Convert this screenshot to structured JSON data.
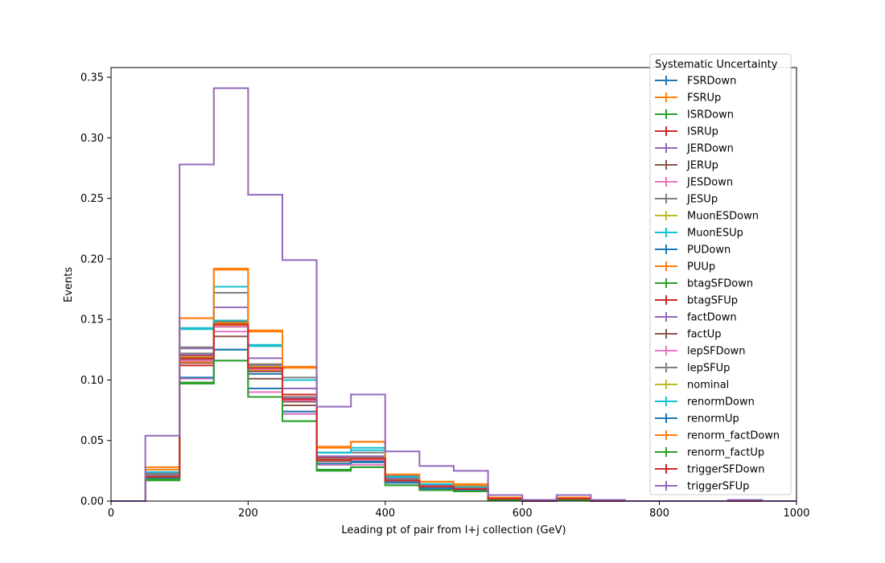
{
  "chart_data": {
    "type": "step-histogram",
    "title": "",
    "xlabel": "Leading pt of pair from l+j collection (GeV)",
    "ylabel": "Events",
    "xlim": [
      0,
      1000
    ],
    "ylim": [
      0,
      0.358
    ],
    "xticks": [
      0,
      200,
      400,
      600,
      800,
      1000
    ],
    "xtick_labels": [
      "0",
      "200",
      "400",
      "600",
      "800",
      "1000"
    ],
    "yticks": [
      0,
      0.05,
      0.1,
      0.15,
      0.2,
      0.25,
      0.3,
      0.35
    ],
    "ytick_labels": [
      "0.00",
      "0.05",
      "0.10",
      "0.15",
      "0.20",
      "0.25",
      "0.30",
      "0.35"
    ],
    "grid": false,
    "legend": {
      "title": "Systematic Uncertainty",
      "placement": "top-right"
    },
    "bin_edges": [
      0,
      50,
      100,
      150,
      200,
      250,
      300,
      350,
      400,
      450,
      500,
      550,
      600,
      650,
      700,
      750,
      800,
      850,
      900,
      950,
      1000
    ],
    "series": [
      {
        "name": "FSRDown",
        "color": "#1f77b4",
        "values": [
          0,
          0.02,
          0.121,
          0.125,
          0.093,
          0.072,
          0.03,
          0.033,
          0.016,
          0.011,
          0.01,
          0.002,
          0,
          0.002,
          0,
          0,
          0,
          0,
          0,
          0
        ]
      },
      {
        "name": "FSRUp",
        "color": "#ff7f0e",
        "values": [
          0,
          0.028,
          0.151,
          0.192,
          0.141,
          0.111,
          0.045,
          0.049,
          0.022,
          0.016,
          0.014,
          0.003,
          0,
          0.003,
          0,
          0,
          0,
          0,
          0,
          0
        ]
      },
      {
        "name": "ISRDown",
        "color": "#2ca02c",
        "values": [
          0,
          0.017,
          0.097,
          0.116,
          0.086,
          0.066,
          0.025,
          0.028,
          0.013,
          0.009,
          0.008,
          0.001,
          0,
          0.001,
          0,
          0,
          0,
          0,
          0,
          0
        ]
      },
      {
        "name": "ISRUp",
        "color": "#d62728",
        "values": [
          0,
          0.021,
          0.112,
          0.149,
          0.108,
          0.088,
          0.036,
          0.036,
          0.018,
          0.012,
          0.011,
          0.002,
          0,
          0.002,
          0,
          0,
          0,
          0,
          0,
          0
        ]
      },
      {
        "name": "JERDown",
        "color": "#9467bd",
        "values": [
          0,
          0.022,
          0.126,
          0.16,
          0.118,
          0.093,
          0.037,
          0.037,
          0.019,
          0.013,
          0.011,
          0.002,
          0,
          0.002,
          0,
          0,
          0,
          0,
          0,
          0
        ]
      },
      {
        "name": "JERUp",
        "color": "#8c564b",
        "values": [
          0,
          0.02,
          0.114,
          0.136,
          0.101,
          0.079,
          0.033,
          0.034,
          0.017,
          0.012,
          0.01,
          0.002,
          0,
          0.002,
          0,
          0,
          0,
          0,
          0,
          0
        ]
      },
      {
        "name": "JESDown",
        "color": "#e377c2",
        "values": [
          0,
          0.019,
          0.101,
          0.14,
          0.09,
          0.072,
          0.03,
          0.03,
          0.015,
          0.01,
          0.009,
          0.001,
          0,
          0.001,
          0,
          0,
          0,
          0,
          0,
          0
        ]
      },
      {
        "name": "JESUp",
        "color": "#7f7f7f",
        "values": [
          0,
          0.023,
          0.127,
          0.172,
          0.128,
          0.102,
          0.04,
          0.04,
          0.021,
          0.014,
          0.012,
          0.002,
          0,
          0.002,
          0,
          0,
          0,
          0,
          0,
          0
        ]
      },
      {
        "name": "MuonESDown",
        "color": "#bcbd22",
        "values": [
          0,
          0.02,
          0.118,
          0.145,
          0.11,
          0.083,
          0.033,
          0.035,
          0.017,
          0.012,
          0.01,
          0.002,
          0,
          0.002,
          0,
          0,
          0,
          0,
          0,
          0
        ]
      },
      {
        "name": "MuonESUp",
        "color": "#17becf",
        "values": [
          0,
          0.026,
          0.143,
          0.177,
          0.129,
          0.1,
          0.04,
          0.044,
          0.02,
          0.014,
          0.012,
          0.002,
          0,
          0.002,
          0,
          0,
          0,
          0,
          0,
          0
        ]
      },
      {
        "name": "PUDown",
        "color": "#1f77b4",
        "values": [
          0,
          0.021,
          0.118,
          0.145,
          0.112,
          0.084,
          0.034,
          0.035,
          0.017,
          0.012,
          0.01,
          0.002,
          0,
          0.002,
          0,
          0,
          0,
          0,
          0,
          0
        ]
      },
      {
        "name": "PUUp",
        "color": "#ff7f0e",
        "values": [
          0,
          0.02,
          0.115,
          0.145,
          0.108,
          0.082,
          0.033,
          0.034,
          0.017,
          0.012,
          0.01,
          0.002,
          0,
          0.002,
          0,
          0,
          0,
          0,
          0,
          0
        ]
      },
      {
        "name": "btagSFDown",
        "color": "#2ca02c",
        "values": [
          0,
          0.018,
          0.117,
          0.146,
          0.111,
          0.084,
          0.034,
          0.035,
          0.017,
          0.012,
          0.01,
          0.002,
          0,
          0.002,
          0,
          0,
          0,
          0,
          0,
          0
        ]
      },
      {
        "name": "btagSFUp",
        "color": "#d62728",
        "values": [
          0,
          0.021,
          0.12,
          0.148,
          0.113,
          0.086,
          0.035,
          0.036,
          0.018,
          0.012,
          0.011,
          0.002,
          0,
          0.002,
          0,
          0,
          0,
          0,
          0,
          0
        ]
      },
      {
        "name": "factDown",
        "color": "#9467bd",
        "values": [
          0,
          0.021,
          0.121,
          0.149,
          0.112,
          0.085,
          0.035,
          0.036,
          0.018,
          0.012,
          0.01,
          0.002,
          0,
          0.002,
          0,
          0,
          0,
          0,
          0,
          0
        ]
      },
      {
        "name": "factUp",
        "color": "#8c564b",
        "values": [
          0,
          0.019,
          0.117,
          0.144,
          0.107,
          0.082,
          0.033,
          0.034,
          0.017,
          0.012,
          0.01,
          0.002,
          0,
          0.002,
          0,
          0,
          0,
          0,
          0,
          0
        ]
      },
      {
        "name": "lepSFDown",
        "color": "#e377c2",
        "values": [
          0,
          0.02,
          0.116,
          0.144,
          0.109,
          0.083,
          0.034,
          0.034,
          0.017,
          0.012,
          0.01,
          0.002,
          0,
          0.002,
          0,
          0,
          0,
          0,
          0,
          0
        ]
      },
      {
        "name": "lepSFUp",
        "color": "#7f7f7f",
        "values": [
          0,
          0.021,
          0.122,
          0.149,
          0.113,
          0.086,
          0.035,
          0.036,
          0.018,
          0.012,
          0.011,
          0.002,
          0,
          0.002,
          0,
          0,
          0,
          0,
          0,
          0
        ]
      },
      {
        "name": "nominal",
        "color": "#bcbd22",
        "values": [
          0,
          0.02,
          0.119,
          0.147,
          0.111,
          0.084,
          0.034,
          0.035,
          0.017,
          0.012,
          0.01,
          0.002,
          0,
          0.002,
          0,
          0,
          0,
          0,
          0,
          0
        ]
      },
      {
        "name": "renormDown",
        "color": "#17becf",
        "values": [
          0,
          0.024,
          0.142,
          0.149,
          0.128,
          0.1,
          0.04,
          0.042,
          0.02,
          0.014,
          0.012,
          0.002,
          0,
          0.002,
          0,
          0,
          0,
          0,
          0,
          0
        ]
      },
      {
        "name": "renormUp",
        "color": "#1f77b4",
        "values": [
          0,
          0.019,
          0.102,
          0.125,
          0.105,
          0.074,
          0.031,
          0.032,
          0.015,
          0.01,
          0.009,
          0.001,
          0,
          0.001,
          0,
          0,
          0,
          0,
          0,
          0
        ]
      },
      {
        "name": "renorm_factDown",
        "color": "#ff7f0e",
        "values": [
          0,
          0.026,
          0.151,
          0.191,
          0.14,
          0.11,
          0.044,
          0.049,
          0.022,
          0.016,
          0.013,
          0.003,
          0,
          0.003,
          0,
          0,
          0,
          0,
          0,
          0
        ]
      },
      {
        "name": "renorm_factUp",
        "color": "#2ca02c",
        "values": [
          0,
          0.018,
          0.098,
          0.116,
          0.086,
          0.066,
          0.026,
          0.028,
          0.013,
          0.009,
          0.008,
          0.001,
          0,
          0.001,
          0,
          0,
          0,
          0,
          0,
          0
        ]
      },
      {
        "name": "triggerSFDown",
        "color": "#d62728",
        "values": [
          0,
          0.02,
          0.118,
          0.146,
          0.11,
          0.084,
          0.034,
          0.035,
          0.017,
          0.012,
          0.01,
          0.002,
          0,
          0.002,
          0,
          0,
          0,
          0,
          0,
          0
        ]
      },
      {
        "name": "triggerSFUp",
        "color": "#9467bd",
        "values": [
          0,
          0.054,
          0.278,
          0.341,
          0.253,
          0.199,
          0.078,
          0.088,
          0.041,
          0.029,
          0.025,
          0.005,
          0.001,
          0.005,
          0.001,
          0,
          0,
          0,
          0.001,
          0
        ]
      }
    ]
  }
}
